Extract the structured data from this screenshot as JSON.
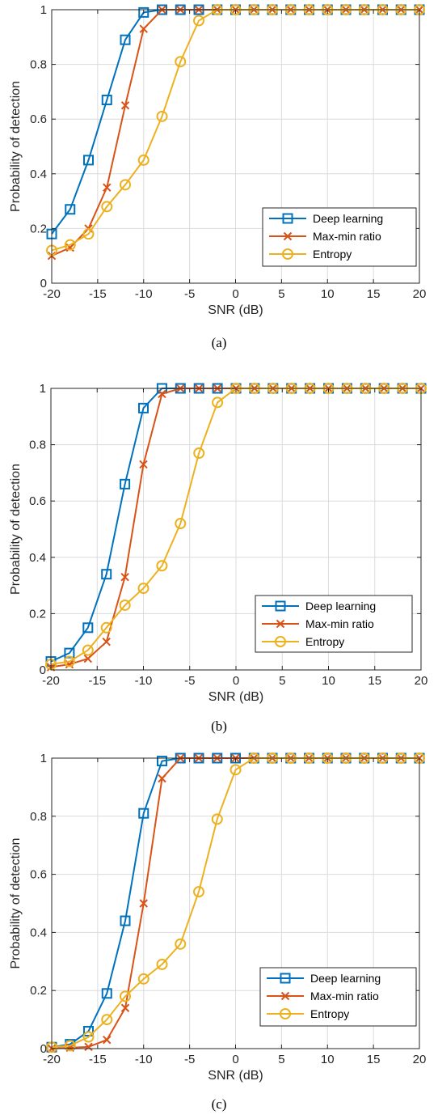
{
  "chart_data": [
    {
      "type": "line",
      "xlabel": "SNR (dB)",
      "ylabel": "Probability of detection",
      "caption": "(a)",
      "xlim": [
        -20,
        20
      ],
      "ylim": [
        0,
        1
      ],
      "xticks": [
        -20,
        -15,
        -10,
        -5,
        0,
        5,
        10,
        15,
        20
      ],
      "yticks": [
        0,
        0.2,
        0.4,
        0.6,
        0.8,
        1
      ],
      "grid": true,
      "legend_position": "bottom-right",
      "x": [
        -20,
        -18,
        -16,
        -14,
        -12,
        -10,
        -8,
        -6,
        -4,
        -2,
        0,
        2,
        4,
        6,
        8,
        10,
        12,
        14,
        16,
        18,
        20
      ],
      "series": [
        {
          "name": "Deep learning",
          "color": "#0072bd",
          "marker": "square",
          "values": [
            0.18,
            0.27,
            0.45,
            0.67,
            0.89,
            0.99,
            1,
            1,
            1,
            1,
            1,
            1,
            1,
            1,
            1,
            1,
            1,
            1,
            1,
            1,
            1
          ]
        },
        {
          "name": "Max-min ratio",
          "color": "#d95319",
          "marker": "x",
          "values": [
            0.1,
            0.13,
            0.2,
            0.35,
            0.65,
            0.93,
            1,
            1,
            1,
            1,
            1,
            1,
            1,
            1,
            1,
            1,
            1,
            1,
            1,
            1,
            1
          ]
        },
        {
          "name": "Entropy",
          "color": "#edb120",
          "marker": "circle",
          "values": [
            0.12,
            0.14,
            0.18,
            0.28,
            0.36,
            0.45,
            0.61,
            0.81,
            0.96,
            1,
            1,
            1,
            1,
            1,
            1,
            1,
            1,
            1,
            1,
            1,
            1
          ]
        }
      ]
    },
    {
      "type": "line",
      "xlabel": "SNR (dB)",
      "ylabel": "Probability of detection",
      "caption": "(b)",
      "xlim": [
        -20,
        20
      ],
      "ylim": [
        0,
        1
      ],
      "xticks": [
        -20,
        -15,
        -10,
        -5,
        0,
        5,
        10,
        15,
        20
      ],
      "yticks": [
        0,
        0.2,
        0.4,
        0.6,
        0.8,
        1
      ],
      "grid": true,
      "legend_position": "bottom-right",
      "x": [
        -20,
        -18,
        -16,
        -14,
        -12,
        -10,
        -8,
        -6,
        -4,
        -2,
        0,
        2,
        4,
        6,
        8,
        10,
        12,
        14,
        16,
        18,
        20
      ],
      "series": [
        {
          "name": "Deep learning",
          "color": "#0072bd",
          "marker": "square",
          "values": [
            0.03,
            0.06,
            0.15,
            0.34,
            0.66,
            0.93,
            1,
            1,
            1,
            1,
            1,
            1,
            1,
            1,
            1,
            1,
            1,
            1,
            1,
            1,
            1
          ]
        },
        {
          "name": "Max-min ratio",
          "color": "#d95319",
          "marker": "x",
          "values": [
            0.01,
            0.02,
            0.04,
            0.1,
            0.33,
            0.73,
            0.98,
            1,
            1,
            1,
            1,
            1,
            1,
            1,
            1,
            1,
            1,
            1,
            1,
            1,
            1
          ]
        },
        {
          "name": "Entropy",
          "color": "#edb120",
          "marker": "circle",
          "values": [
            0.02,
            0.03,
            0.07,
            0.15,
            0.23,
            0.29,
            0.37,
            0.52,
            0.77,
            0.95,
            1,
            1,
            1,
            1,
            1,
            1,
            1,
            1,
            1,
            1,
            1
          ]
        }
      ]
    },
    {
      "type": "line",
      "xlabel": "SNR (dB)",
      "ylabel": "Probability of detection",
      "caption": "(c)",
      "xlim": [
        -20,
        20
      ],
      "ylim": [
        0,
        1
      ],
      "xticks": [
        -20,
        -15,
        -10,
        -5,
        0,
        5,
        10,
        15,
        20
      ],
      "yticks": [
        0,
        0.2,
        0.4,
        0.6,
        0.8,
        1
      ],
      "grid": true,
      "legend_position": "bottom-right",
      "x": [
        -20,
        -18,
        -16,
        -14,
        -12,
        -10,
        -8,
        -6,
        -4,
        -2,
        0,
        2,
        4,
        6,
        8,
        10,
        12,
        14,
        16,
        18,
        20
      ],
      "series": [
        {
          "name": "Deep learning",
          "color": "#0072bd",
          "marker": "square",
          "values": [
            0.005,
            0.015,
            0.06,
            0.19,
            0.44,
            0.81,
            0.99,
            1,
            1,
            1,
            1,
            1,
            1,
            1,
            1,
            1,
            1,
            1,
            1,
            1,
            1
          ]
        },
        {
          "name": "Max-min ratio",
          "color": "#d95319",
          "marker": "x",
          "values": [
            0.0,
            0.003,
            0.006,
            0.03,
            0.14,
            0.5,
            0.93,
            1,
            1,
            1,
            1,
            1,
            1,
            1,
            1,
            1,
            1,
            1,
            1,
            1,
            1
          ]
        },
        {
          "name": "Entropy",
          "color": "#edb120",
          "marker": "circle",
          "values": [
            0.005,
            0.01,
            0.04,
            0.1,
            0.18,
            0.24,
            0.29,
            0.36,
            0.54,
            0.79,
            0.96,
            1,
            1,
            1,
            1,
            1,
            1,
            1,
            1,
            1,
            1
          ]
        }
      ]
    }
  ]
}
